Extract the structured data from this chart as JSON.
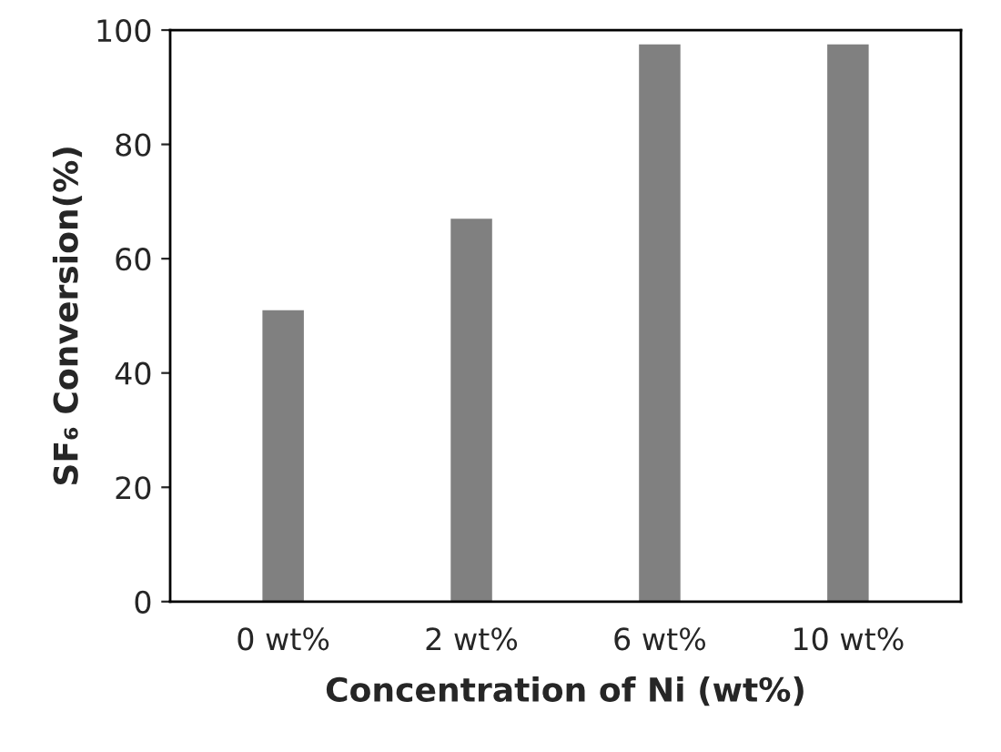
{
  "chart_data": {
    "type": "bar",
    "xlabel": "Concentration of Ni (wt%)",
    "ylabel": "SF₆ Conversion(%)",
    "categories": [
      "0 wt%",
      "2 wt%",
      "6 wt%",
      "10 wt%"
    ],
    "values": [
      51,
      67,
      97.5,
      97.5
    ],
    "color": "#808080",
    "ylim": [
      0,
      100
    ],
    "yticks": [
      0,
      20,
      40,
      60,
      80,
      100
    ],
    "grid": false
  }
}
